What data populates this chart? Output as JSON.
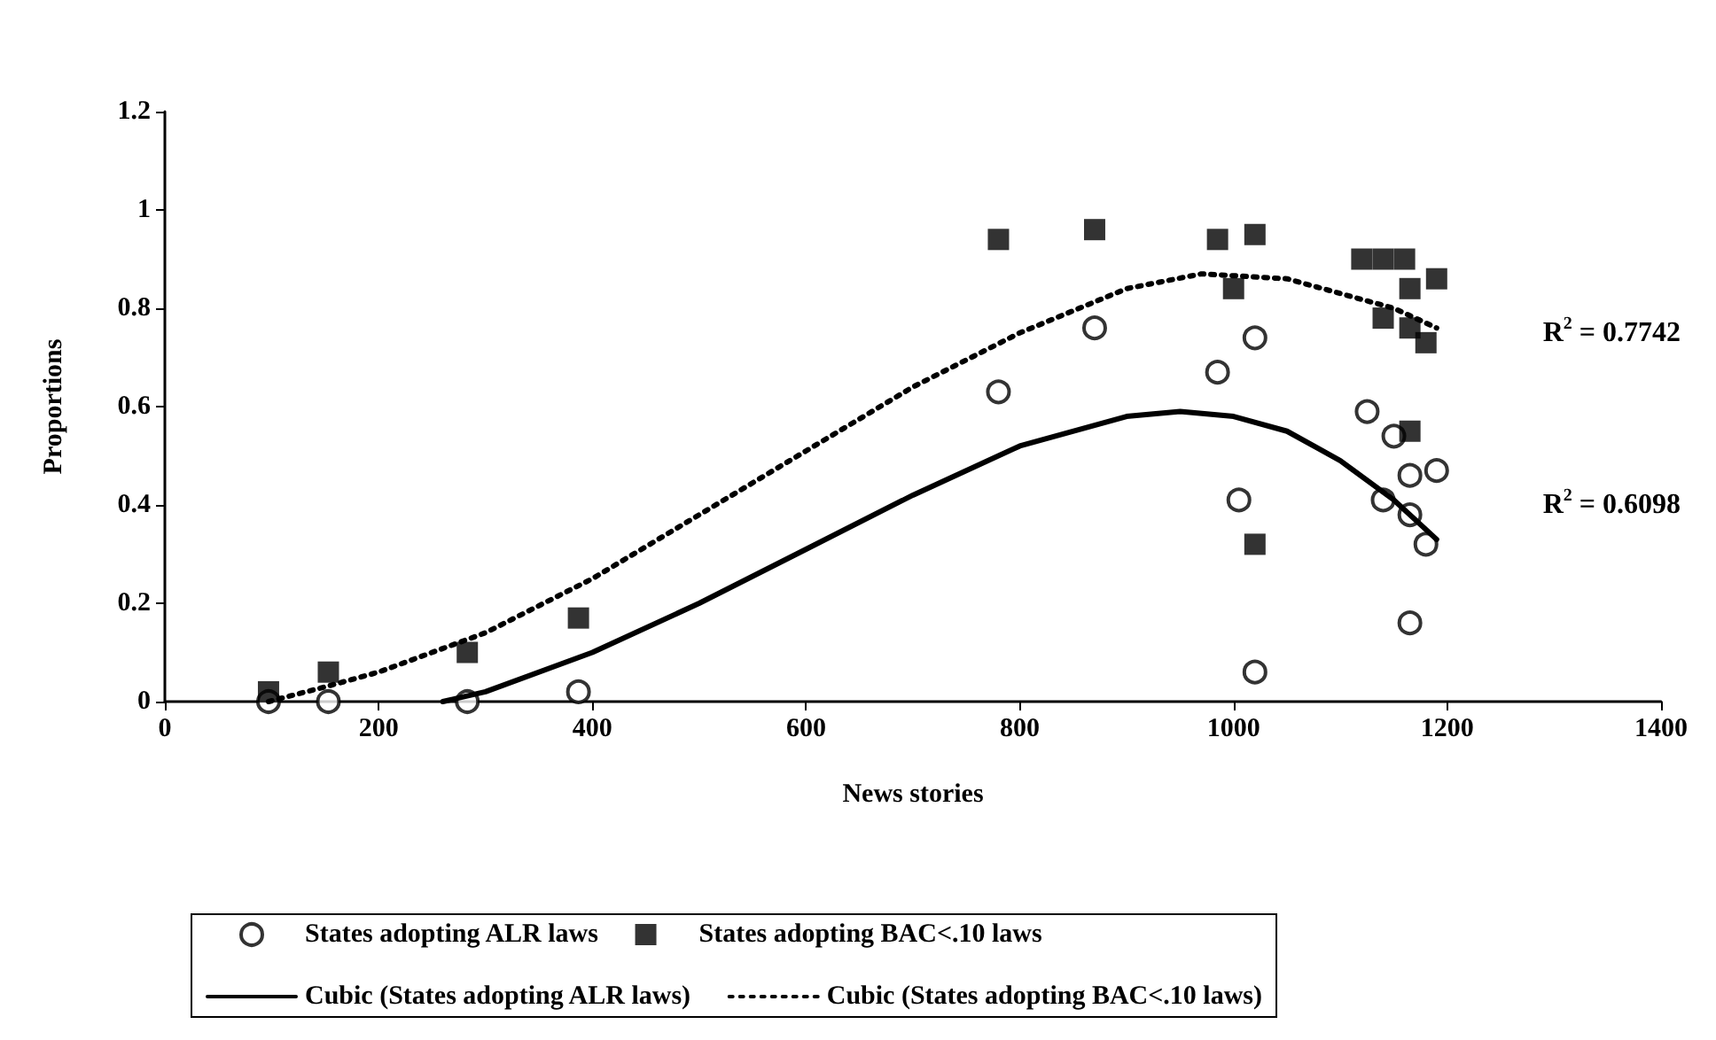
{
  "chart_data": {
    "type": "scatter",
    "xlabel": "News stories",
    "ylabel": "Proportions",
    "xlim": [
      0,
      1400
    ],
    "xticks": [
      0,
      200,
      400,
      600,
      800,
      1000,
      1200,
      1400
    ],
    "ylim": [
      0,
      1.2
    ],
    "yticks": [
      0,
      0.2,
      0.4,
      0.6,
      0.8,
      1,
      1.2
    ],
    "grid": false,
    "legend": "bottom",
    "series": [
      {
        "name": "States adopting ALR laws",
        "marker": "circle",
        "color": "#000000",
        "x": [
          97,
          153,
          283,
          387,
          780,
          870,
          985,
          1020,
          1005,
          1020,
          1125,
          1150,
          1165,
          1190,
          1140,
          1165,
          1180,
          1165
        ],
        "values": [
          0,
          0,
          0,
          0.02,
          0.63,
          0.76,
          0.67,
          0.74,
          0.41,
          0.06,
          0.59,
          0.54,
          0.46,
          0.47,
          0.41,
          0.38,
          0.32,
          0.16
        ]
      },
      {
        "name": "States adopting BAC<.10 laws",
        "marker": "square",
        "color": "#000000",
        "x": [
          97,
          153,
          283,
          387,
          780,
          870,
          985,
          1020,
          1000,
          1120,
          1140,
          1160,
          1140,
          1165,
          1165,
          1180,
          1190,
          1165,
          1020
        ],
        "values": [
          0.02,
          0.06,
          0.1,
          0.17,
          0.94,
          0.96,
          0.94,
          0.95,
          0.84,
          0.9,
          0.9,
          0.9,
          0.78,
          0.84,
          0.76,
          0.73,
          0.86,
          0.55,
          0.32
        ]
      },
      {
        "name": "Cubic (States adopting ALR laws)",
        "type": "line",
        "line_style": "solid",
        "marker": "none",
        "color": "#000000",
        "x": [
          260,
          300,
          400,
          500,
          600,
          700,
          800,
          900,
          950,
          1000,
          1050,
          1100,
          1150,
          1190
        ],
        "values": [
          0,
          0.02,
          0.1,
          0.2,
          0.31,
          0.42,
          0.52,
          0.58,
          0.59,
          0.58,
          0.55,
          0.49,
          0.41,
          0.33
        ]
      },
      {
        "name": "Cubic (States adopting BAC<.10 laws)",
        "type": "line",
        "line_style": "dotted",
        "marker": "none",
        "color": "#000000",
        "x": [
          97,
          150,
          200,
          300,
          400,
          500,
          600,
          700,
          800,
          900,
          970,
          1050,
          1100,
          1150,
          1190
        ],
        "values": [
          0,
          0.03,
          0.06,
          0.14,
          0.25,
          0.38,
          0.51,
          0.64,
          0.75,
          0.84,
          0.87,
          0.86,
          0.83,
          0.8,
          0.76
        ]
      }
    ],
    "annotations": [
      "R$^{2}$ = 0.7742",
      "R$^{2}$ = 0.6098"
    ]
  }
}
